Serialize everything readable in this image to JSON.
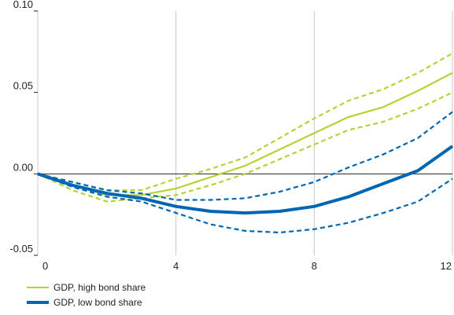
{
  "chart_data": {
    "type": "line",
    "title": "",
    "xlabel": "",
    "ylabel": "",
    "xlim": [
      0,
      12
    ],
    "ylim": [
      -0.05,
      0.1
    ],
    "x_ticks": [
      0,
      4,
      8,
      12
    ],
    "x_tick_labels": [
      "0",
      "4",
      "8",
      "12"
    ],
    "y_ticks": [
      -0.05,
      0,
      0.05,
      0.1
    ],
    "y_tick_labels": [
      "-0.05",
      "0.00",
      "0.05",
      "0.10"
    ],
    "grid": "vertical",
    "zero_line": true,
    "legend_position": "bottom-left",
    "x": [
      0,
      1,
      2,
      3,
      4,
      5,
      6,
      7,
      8,
      9,
      10,
      11,
      12
    ],
    "series": [
      {
        "name": "GDP, high bond share",
        "color": "#b5d334",
        "style": "solid",
        "in_legend": true,
        "values": [
          0,
          -0.007,
          -0.013,
          -0.013,
          -0.009,
          -0.002,
          0.005,
          0.015,
          0.025,
          0.035,
          0.041,
          0.051,
          0.062
        ]
      },
      {
        "name": "",
        "color": "#b5d334",
        "style": "dashed",
        "in_legend": false,
        "values": [
          0,
          -0.005,
          -0.01,
          -0.01,
          -0.003,
          0.003,
          0.01,
          0.022,
          0.034,
          0.045,
          0.052,
          0.062,
          0.074
        ]
      },
      {
        "name": "",
        "color": "#b5d334",
        "style": "dashed",
        "in_legend": false,
        "values": [
          0,
          -0.01,
          -0.017,
          -0.015,
          -0.013,
          -0.007,
          0.0,
          0.009,
          0.018,
          0.027,
          0.032,
          0.04,
          0.05
        ]
      },
      {
        "name": "GDP, low bond share",
        "color": "#0066b3",
        "style": "solid",
        "in_legend": true,
        "values": [
          0,
          -0.007,
          -0.012,
          -0.015,
          -0.02,
          -0.023,
          -0.024,
          -0.023,
          -0.02,
          -0.014,
          -0.006,
          0.002,
          0.017
        ]
      },
      {
        "name": "",
        "color": "#0066b3",
        "style": "dashed",
        "in_legend": false,
        "values": [
          0,
          -0.005,
          -0.01,
          -0.012,
          -0.016,
          -0.016,
          -0.015,
          -0.011,
          -0.005,
          0.004,
          0.012,
          0.022,
          0.038
        ]
      },
      {
        "name": "",
        "color": "#0066b3",
        "style": "dashed",
        "in_legend": false,
        "values": [
          0,
          -0.008,
          -0.014,
          -0.017,
          -0.024,
          -0.031,
          -0.035,
          -0.036,
          -0.034,
          -0.03,
          -0.024,
          -0.017,
          -0.003
        ]
      }
    ]
  }
}
